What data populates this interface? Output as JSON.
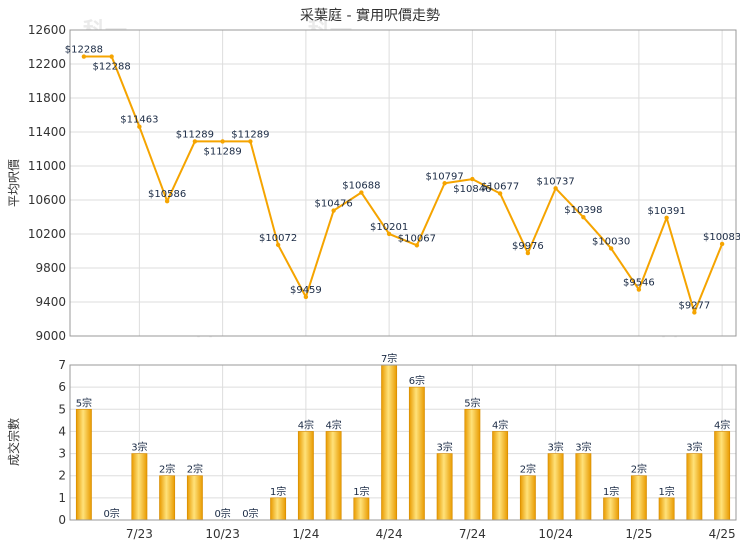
{
  "title": "采葉庭 - 實用呎價走勢",
  "watermark": "科一",
  "colors": {
    "line": "#f5a400",
    "bar_light": "#ffe27a",
    "bar_dark": "#e89a00",
    "grid": "#dddddd",
    "frame": "#999999"
  },
  "chart_data": [
    {
      "type": "line",
      "ylabel": "平均呎價",
      "ylim": [
        9000,
        12600
      ],
      "yticks": [
        9000,
        9400,
        9800,
        10200,
        10600,
        11000,
        11400,
        11800,
        12200,
        12600
      ],
      "grid": true,
      "series": [
        {
          "values": [
            12288,
            12288,
            11463,
            10586,
            11289,
            11289,
            11289,
            10072,
            9459,
            10476,
            10688,
            10201,
            10067,
            10797,
            10846,
            10677,
            9976,
            10737,
            10398,
            10030,
            9546,
            10391,
            9277,
            10083
          ],
          "labels": [
            "$12288",
            "$12288",
            "$11463",
            "$10586",
            "$11289",
            "$11289",
            "$11289",
            "$10072",
            "$9459",
            "$10476",
            "$10688",
            "$10201",
            "$10067",
            "$10797",
            "$10846",
            "$10677",
            "$9976",
            "$10737",
            "$10398",
            "$10030",
            "$9546",
            "$10391",
            "$9277",
            "$10083"
          ]
        }
      ]
    },
    {
      "type": "bar",
      "ylabel": "成交宗數",
      "ylim": [
        0,
        7
      ],
      "yticks": [
        0,
        1,
        2,
        3,
        4,
        5,
        6,
        7
      ],
      "grid": true,
      "xtick_labels": [
        "7/23",
        "10/23",
        "1/24",
        "4/24",
        "7/24",
        "10/24",
        "1/25",
        "4/25"
      ],
      "values": [
        5,
        0,
        3,
        2,
        2,
        0,
        0,
        1,
        4,
        4,
        1,
        7,
        6,
        3,
        5,
        4,
        2,
        3,
        3,
        1,
        2,
        1,
        3,
        4
      ],
      "labels": [
        "5宗",
        "0宗",
        "3宗",
        "2宗",
        "2宗",
        "0宗",
        "0宗",
        "1宗",
        "4宗",
        "4宗",
        "1宗",
        "7宗",
        "6宗",
        "3宗",
        "5宗",
        "4宗",
        "2宗",
        "3宗",
        "3宗",
        "1宗",
        "2宗",
        "1宗",
        "3宗",
        "4宗"
      ]
    }
  ]
}
